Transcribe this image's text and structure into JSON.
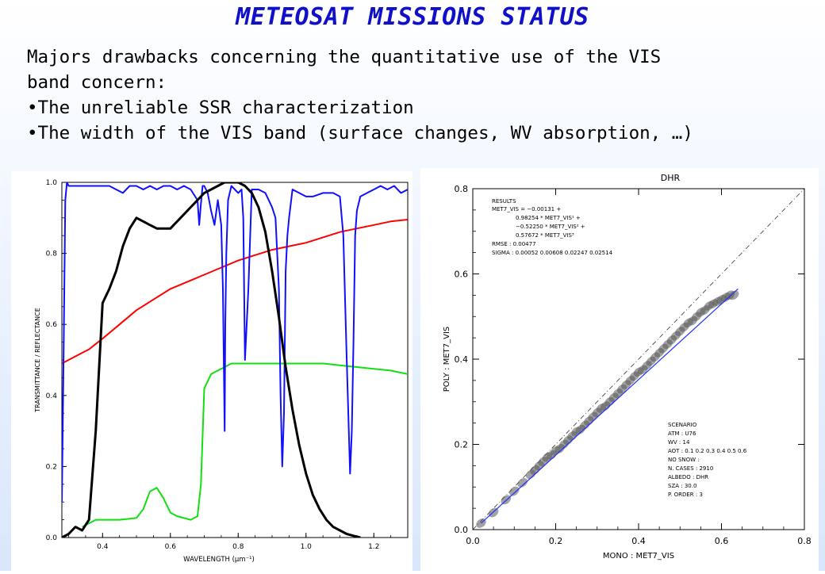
{
  "slide": {
    "title": "METEOSAT MISSIONS STATUS",
    "paragraph_line1": "Majors drawbacks concerning the quantitative use of the VIS",
    "paragraph_line2": "band concern:",
    "bullets": [
      "•The unreliable SSR characterization",
      "•The width of the VIS band (surface changes, WV absorption, …)"
    ]
  },
  "chart_data": [
    {
      "type": "line",
      "title": "",
      "xlabel": "WAVELENGTH (µm⁻¹)",
      "ylabel": "TRANSMITTANCE / REFLECTANCE",
      "xlim": [
        0.28,
        1.3
      ],
      "ylim": [
        0.0,
        1.0
      ],
      "x_ticks": [
        "0.4",
        "0.6",
        "0.8",
        "1.0",
        "1.2"
      ],
      "y_ticks": [
        "0.0",
        "0.2",
        "0.4",
        "0.6",
        "0.8",
        "1.0"
      ],
      "colors": {
        "blue": "#1010ff",
        "black": "#000000",
        "red": "#ff0000",
        "green": "#10e010"
      },
      "series": [
        {
          "color": "black",
          "x": [
            0.28,
            0.3,
            0.32,
            0.34,
            0.36,
            0.38,
            0.4,
            0.42,
            0.44,
            0.46,
            0.48,
            0.5,
            0.52,
            0.54,
            0.56,
            0.58,
            0.6,
            0.62,
            0.64,
            0.66,
            0.68,
            0.7,
            0.72,
            0.74,
            0.76,
            0.78,
            0.8,
            0.82,
            0.84,
            0.86,
            0.88,
            0.9,
            0.92,
            0.94,
            0.96,
            0.98,
            1.0,
            1.02,
            1.04,
            1.06,
            1.08,
            1.1,
            1.12,
            1.14,
            1.16
          ],
          "y": [
            0.0,
            0.01,
            0.03,
            0.02,
            0.05,
            0.3,
            0.66,
            0.7,
            0.75,
            0.82,
            0.87,
            0.9,
            0.89,
            0.88,
            0.87,
            0.87,
            0.87,
            0.89,
            0.91,
            0.93,
            0.95,
            0.97,
            0.98,
            0.99,
            1.0,
            1.0,
            1.0,
            0.99,
            0.97,
            0.93,
            0.86,
            0.75,
            0.62,
            0.48,
            0.36,
            0.26,
            0.18,
            0.12,
            0.08,
            0.05,
            0.03,
            0.02,
            0.01,
            0.005,
            0.0
          ]
        },
        {
          "color": "red",
          "x": [
            0.28,
            0.3,
            0.32,
            0.34,
            0.36,
            0.38,
            0.4,
            0.45,
            0.5,
            0.55,
            0.6,
            0.65,
            0.7,
            0.75,
            0.8,
            0.85,
            0.9,
            0.95,
            1.0,
            1.05,
            1.1,
            1.15,
            1.2,
            1.25,
            1.3
          ],
          "y": [
            0.49,
            0.5,
            0.51,
            0.52,
            0.53,
            0.545,
            0.56,
            0.6,
            0.64,
            0.67,
            0.7,
            0.72,
            0.74,
            0.76,
            0.78,
            0.795,
            0.81,
            0.82,
            0.83,
            0.845,
            0.86,
            0.87,
            0.88,
            0.89,
            0.895
          ]
        },
        {
          "color": "green",
          "x": [
            0.34,
            0.36,
            0.38,
            0.4,
            0.45,
            0.5,
            0.52,
            0.54,
            0.56,
            0.58,
            0.6,
            0.62,
            0.64,
            0.66,
            0.68,
            0.69,
            0.7,
            0.72,
            0.74,
            0.76,
            0.78,
            0.8,
            0.85,
            0.9,
            0.95,
            1.0,
            1.05,
            1.1,
            1.15,
            1.2,
            1.25,
            1.3
          ],
          "y": [
            0.03,
            0.04,
            0.05,
            0.05,
            0.05,
            0.055,
            0.08,
            0.13,
            0.14,
            0.11,
            0.07,
            0.06,
            0.055,
            0.05,
            0.06,
            0.15,
            0.42,
            0.46,
            0.47,
            0.48,
            0.49,
            0.49,
            0.49,
            0.49,
            0.49,
            0.49,
            0.49,
            0.485,
            0.48,
            0.475,
            0.47,
            0.46
          ]
        },
        {
          "color": "blue",
          "x": [
            0.28,
            0.285,
            0.29,
            0.295,
            0.3,
            0.35,
            0.4,
            0.42,
            0.44,
            0.46,
            0.48,
            0.5,
            0.52,
            0.54,
            0.56,
            0.58,
            0.6,
            0.62,
            0.64,
            0.66,
            0.68,
            0.685,
            0.69,
            0.695,
            0.7,
            0.71,
            0.72,
            0.73,
            0.74,
            0.75,
            0.755,
            0.76,
            0.762,
            0.765,
            0.77,
            0.78,
            0.79,
            0.8,
            0.81,
            0.815,
            0.82,
            0.825,
            0.83,
            0.84,
            0.86,
            0.88,
            0.9,
            0.91,
            0.92,
            0.925,
            0.93,
            0.935,
            0.94,
            0.945,
            0.95,
            0.96,
            0.98,
            1.0,
            1.02,
            1.05,
            1.08,
            1.1,
            1.11,
            1.12,
            1.13,
            1.135,
            1.14,
            1.145,
            1.15,
            1.16,
            1.18,
            1.2,
            1.22,
            1.24,
            1.26,
            1.28,
            1.3
          ],
          "y": [
            0.1,
            0.5,
            0.95,
            1.0,
            0.99,
            0.99,
            0.99,
            0.99,
            0.98,
            0.97,
            0.99,
            0.99,
            0.98,
            0.99,
            0.98,
            0.99,
            0.99,
            0.98,
            0.99,
            0.98,
            0.95,
            0.88,
            0.94,
            0.99,
            0.99,
            0.97,
            0.92,
            0.88,
            0.95,
            0.88,
            0.7,
            0.3,
            0.6,
            0.8,
            0.95,
            0.99,
            0.98,
            0.97,
            0.98,
            0.9,
            0.5,
            0.6,
            0.7,
            0.98,
            0.98,
            0.97,
            0.93,
            0.9,
            0.7,
            0.4,
            0.2,
            0.35,
            0.75,
            0.85,
            0.9,
            0.98,
            0.97,
            0.96,
            0.96,
            0.97,
            0.97,
            0.96,
            0.85,
            0.5,
            0.18,
            0.3,
            0.55,
            0.85,
            0.92,
            0.96,
            0.97,
            0.98,
            0.99,
            0.98,
            0.99,
            0.97,
            0.98
          ]
        }
      ]
    },
    {
      "type": "scatter",
      "title": "DHR",
      "xlabel": "MONO : MET7_VIS",
      "ylabel": "POLY : MET7_VIS",
      "xlim": [
        0.0,
        0.8
      ],
      "ylim": [
        0.0,
        0.8
      ],
      "x_ticks": [
        "0.0",
        "0.2",
        "0.4",
        "0.6",
        "0.8"
      ],
      "y_ticks": [
        "0.0",
        "0.2",
        "0.4",
        "0.6",
        "0.8"
      ],
      "points_x": [
        0.02,
        0.05,
        0.08,
        0.1,
        0.12,
        0.14,
        0.15,
        0.16,
        0.17,
        0.18,
        0.19,
        0.2,
        0.21,
        0.22,
        0.23,
        0.24,
        0.25,
        0.26,
        0.27,
        0.28,
        0.29,
        0.3,
        0.31,
        0.32,
        0.33,
        0.34,
        0.35,
        0.36,
        0.37,
        0.38,
        0.39,
        0.4,
        0.41,
        0.42,
        0.43,
        0.44,
        0.45,
        0.46,
        0.47,
        0.48,
        0.49,
        0.5,
        0.51,
        0.52,
        0.53,
        0.54,
        0.55,
        0.56,
        0.57,
        0.58,
        0.59,
        0.6,
        0.61,
        0.62,
        0.63
      ],
      "points_y": [
        0.015,
        0.04,
        0.07,
        0.09,
        0.11,
        0.13,
        0.14,
        0.15,
        0.16,
        0.17,
        0.175,
        0.185,
        0.19,
        0.2,
        0.21,
        0.22,
        0.23,
        0.235,
        0.245,
        0.255,
        0.265,
        0.275,
        0.285,
        0.29,
        0.3,
        0.31,
        0.32,
        0.33,
        0.34,
        0.35,
        0.36,
        0.37,
        0.375,
        0.385,
        0.395,
        0.405,
        0.415,
        0.425,
        0.435,
        0.445,
        0.455,
        0.465,
        0.475,
        0.485,
        0.49,
        0.5,
        0.51,
        0.515,
        0.525,
        0.53,
        0.535,
        0.54,
        0.545,
        0.55,
        0.55
      ],
      "fit_x": [
        0.02,
        0.64
      ],
      "fit_y": [
        0.015,
        0.565
      ],
      "identity_line": [
        0.0,
        0.8
      ],
      "results": {
        "heading": "RESULTS",
        "lines": [
          "MET7_VIS = −0.00131 +",
          "0.98254 * MET7_VIS¹ +",
          "−0.52250 * MET7_VIS² +",
          "0.57672 * MET7_VIS³",
          "RMSE      :  0.00477",
          "SIGMA     :  0.00052 0.00608 0.02247 0.02514"
        ]
      },
      "scenario": {
        "heading": "SCENARIO",
        "lines": [
          "ATM       :  U76",
          "WV        :  14",
          "AOT       :  0.1 0.2 0.3 0.4 0.5 0.6",
          "NO SNOW   :",
          "N. CASES  :   2910",
          "ALBEDO    :  DHR",
          "SZA       :  30.0",
          "P. ORDER  :  3"
        ]
      }
    }
  ]
}
